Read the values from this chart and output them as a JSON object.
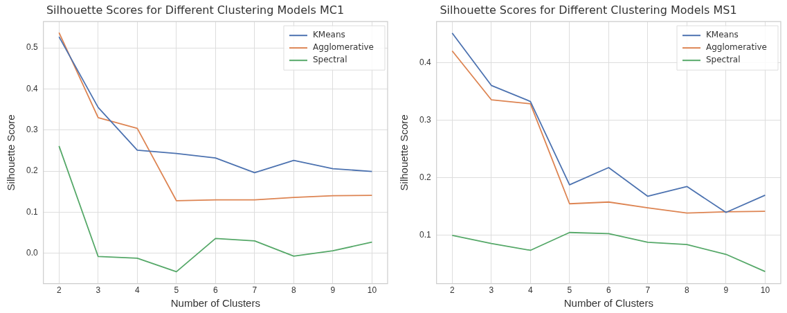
{
  "chart_data": [
    {
      "type": "line",
      "title": "Silhouette Scores for Different Clustering Models MC1",
      "xlabel": "Number of Clusters",
      "ylabel": "Silhouette Score",
      "x": [
        2,
        3,
        4,
        5,
        6,
        7,
        8,
        9,
        10
      ],
      "series": [
        {
          "name": "KMeans",
          "color": "#4c72b0",
          "values": [
            0.527,
            0.355,
            0.251,
            0.243,
            0.232,
            0.196,
            0.226,
            0.206,
            0.199
          ]
        },
        {
          "name": "Agglomerative",
          "color": "#dd8452",
          "values": [
            0.537,
            0.33,
            0.304,
            0.128,
            0.13,
            0.13,
            0.136,
            0.14,
            0.141
          ]
        },
        {
          "name": "Spectral",
          "color": "#55a868",
          "values": [
            0.261,
            -0.008,
            -0.012,
            -0.045,
            0.036,
            0.03,
            -0.007,
            0.006,
            0.027
          ]
        }
      ],
      "xlim": [
        1.6,
        10.4
      ],
      "xticks": [
        2,
        3,
        4,
        5,
        6,
        7,
        8,
        9,
        10
      ],
      "ylim": [
        -0.074,
        0.564
      ],
      "yticks": [
        {
          "value": 0,
          "label": "0.0"
        },
        0.1,
        0.2,
        0.3,
        0.4,
        0.5
      ],
      "grid": true,
      "legend": "top right"
    },
    {
      "type": "line",
      "title": "Silhouette Scores for Different Clustering Models MS1",
      "xlabel": "Number of Clusters",
      "ylabel": "Silhouette Score",
      "x": [
        2,
        3,
        4,
        5,
        6,
        7,
        8,
        9,
        10
      ],
      "series": [
        {
          "name": "KMeans",
          "color": "#4c72b0",
          "values": [
            0.452,
            0.361,
            0.333,
            0.188,
            0.218,
            0.168,
            0.185,
            0.14,
            0.17
          ]
        },
        {
          "name": "Agglomerative",
          "color": "#dd8452",
          "values": [
            0.421,
            0.336,
            0.329,
            0.155,
            0.158,
            0.148,
            0.139,
            0.141,
            0.142
          ]
        },
        {
          "name": "Spectral",
          "color": "#55a868",
          "values": [
            0.1,
            0.086,
            0.074,
            0.105,
            0.103,
            0.088,
            0.084,
            0.067,
            0.037
          ]
        }
      ],
      "xlim": [
        1.6,
        10.4
      ],
      "xticks": [
        2,
        3,
        4,
        5,
        6,
        7,
        8,
        9,
        10
      ],
      "ylim": [
        0.016,
        0.472
      ],
      "yticks": [
        0.1,
        0.2,
        0.3,
        0.4
      ],
      "grid": true,
      "legend": "top right"
    }
  ]
}
